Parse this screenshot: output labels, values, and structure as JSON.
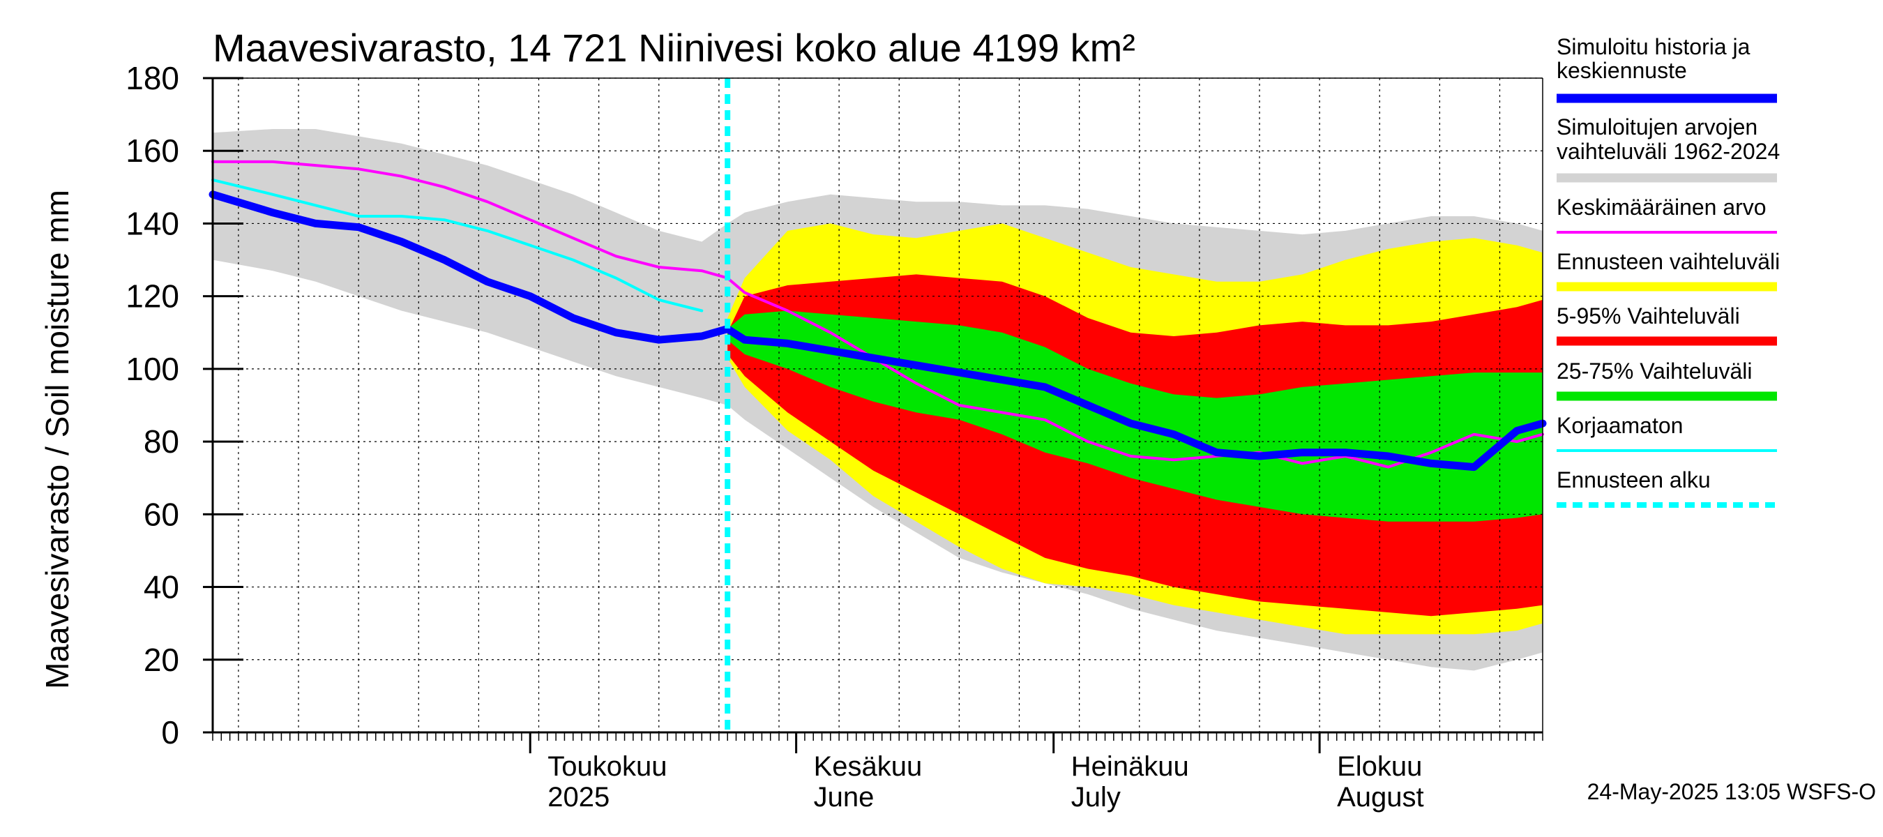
{
  "chart_data": {
    "type": "area",
    "title": "Maavesivarasto, 14 721 Niinivesi koko alue 4199 km²",
    "ylabel": "Maavesivarasto / Soil moisture   mm",
    "ylim": [
      0,
      180
    ],
    "yticks": [
      0,
      20,
      40,
      60,
      80,
      100,
      120,
      140,
      160,
      180
    ],
    "x_range_days": [
      -37,
      118
    ],
    "x_unit": "days relative to 1 May 2025",
    "forecast_start_day": 23,
    "month_labels": [
      {
        "day": 0,
        "line1": "Toukokuu",
        "line2": "2025"
      },
      {
        "day": 31,
        "line1": "Kesäkuu",
        "line2": "June"
      },
      {
        "day": 61,
        "line1": "Heinäkuu",
        "line2": "July"
      },
      {
        "day": 92,
        "line1": "Elokuu",
        "line2": "August"
      }
    ],
    "days": [
      -37,
      -30,
      -25,
      -20,
      -15,
      -10,
      -5,
      0,
      5,
      10,
      15,
      20,
      23,
      25,
      30,
      35,
      40,
      45,
      50,
      55,
      60,
      65,
      70,
      75,
      80,
      85,
      90,
      95,
      100,
      105,
      110,
      115,
      118
    ],
    "series": [
      {
        "name": "Simuloitujen arvojen vaihteluväli 1962-2024",
        "color": "#d3d3d3",
        "kind": "band",
        "lower": [
          130,
          127,
          124,
          120,
          116,
          113,
          110,
          106,
          102,
          98,
          95,
          92,
          90,
          86,
          78,
          70,
          62,
          55,
          48,
          44,
          41,
          38,
          34,
          31,
          28,
          26,
          24,
          22,
          20,
          18,
          17,
          20,
          22
        ],
        "upper": [
          165,
          166,
          166,
          164,
          162,
          159,
          156,
          152,
          148,
          143,
          138,
          135,
          140,
          143,
          146,
          148,
          147,
          146,
          146,
          145,
          145,
          144,
          142,
          140,
          139,
          138,
          137,
          138,
          140,
          142,
          142,
          140,
          138
        ]
      },
      {
        "name": "Ennusteen vaihteluväli",
        "color": "#ffff00",
        "kind": "band",
        "lower": [
          null,
          null,
          null,
          null,
          null,
          null,
          null,
          null,
          null,
          null,
          null,
          null,
          103,
          95,
          83,
          75,
          65,
          58,
          51,
          45,
          41,
          40,
          38,
          35,
          33,
          31,
          29,
          27,
          27,
          27,
          27,
          28,
          30
        ],
        "upper": [
          null,
          null,
          null,
          null,
          null,
          null,
          null,
          null,
          null,
          null,
          null,
          null,
          114,
          125,
          138,
          140,
          137,
          136,
          138,
          140,
          136,
          132,
          128,
          126,
          124,
          124,
          126,
          130,
          133,
          135,
          136,
          134,
          132
        ]
      },
      {
        "name": "5-95% Vaihteluväli",
        "color": "#ff0000",
        "kind": "band",
        "lower": [
          null,
          null,
          null,
          null,
          null,
          null,
          null,
          null,
          null,
          null,
          null,
          null,
          104,
          98,
          88,
          80,
          72,
          66,
          60,
          54,
          48,
          45,
          43,
          40,
          38,
          36,
          35,
          34,
          33,
          32,
          33,
          34,
          35
        ],
        "upper": [
          null,
          null,
          null,
          null,
          null,
          null,
          null,
          null,
          null,
          null,
          null,
          null,
          110,
          120,
          123,
          124,
          125,
          126,
          125,
          124,
          120,
          114,
          110,
          109,
          110,
          112,
          113,
          112,
          112,
          113,
          115,
          117,
          119
        ]
      },
      {
        "name": "25-75% Vaihteluväli",
        "color": "#00e600",
        "kind": "band",
        "lower": [
          null,
          null,
          null,
          null,
          null,
          null,
          null,
          null,
          null,
          null,
          null,
          null,
          108,
          104,
          100,
          95,
          91,
          88,
          86,
          82,
          77,
          74,
          70,
          67,
          64,
          62,
          60,
          59,
          58,
          58,
          58,
          59,
          60
        ],
        "upper": [
          null,
          null,
          null,
          null,
          null,
          null,
          null,
          null,
          null,
          null,
          null,
          null,
          111,
          115,
          116,
          115,
          114,
          113,
          112,
          110,
          106,
          100,
          96,
          93,
          92,
          93,
          95,
          96,
          97,
          98,
          99,
          99,
          99
        ]
      },
      {
        "name": "Keskimääräinen arvo",
        "color": "#ff00ff",
        "kind": "line",
        "values": [
          157,
          157,
          156,
          155,
          153,
          150,
          146,
          141,
          136,
          131,
          128,
          127,
          125,
          121,
          116,
          110,
          103,
          96,
          90,
          88,
          86,
          80,
          76,
          75,
          76,
          77,
          74,
          76,
          73,
          77,
          82,
          80,
          82
        ]
      },
      {
        "name": "Korjaamaton",
        "color": "#00ffff",
        "kind": "line",
        "values": [
          152,
          148,
          145,
          142,
          142,
          141,
          138,
          134,
          130,
          125,
          119,
          116,
          null,
          null,
          null,
          null,
          null,
          null,
          null,
          null,
          null,
          null,
          null,
          null,
          null,
          null,
          null,
          null,
          null,
          null,
          null,
          null,
          null
        ]
      },
      {
        "name": "Simuloitu historia ja keskiennuste",
        "color": "#0000ff",
        "kind": "line",
        "values": [
          148,
          143,
          140,
          139,
          135,
          130,
          124,
          120,
          114,
          110,
          108,
          109,
          111,
          108,
          107,
          105,
          103,
          101,
          99,
          97,
          95,
          90,
          85,
          82,
          77,
          76,
          77,
          77,
          76,
          74,
          73,
          83,
          85
        ]
      }
    ],
    "legend": [
      {
        "label": "Simuloitu historia ja keskiennuste",
        "color": "#0000ff",
        "style": "thick"
      },
      {
        "label": "Simuloitujen arvojen vaihteluväli 1962-2024",
        "color": "#d3d3d3",
        "style": "thick"
      },
      {
        "label": "Keskimääräinen arvo",
        "color": "#ff00ff",
        "style": "thin"
      },
      {
        "label": "Ennusteen vaihteluväli",
        "color": "#ffff00",
        "style": "thick"
      },
      {
        "label": "5-95% Vaihteluväli",
        "color": "#ff0000",
        "style": "thick"
      },
      {
        "label": "25-75% Vaihteluväli",
        "color": "#00e600",
        "style": "thick"
      },
      {
        "label": "Korjaamaton",
        "color": "#00ffff",
        "style": "thin"
      },
      {
        "label": "Ennusteen alku",
        "color": "#00ffff",
        "style": "dashed"
      }
    ],
    "footer": "24-May-2025 13:05 WSFS-O"
  }
}
